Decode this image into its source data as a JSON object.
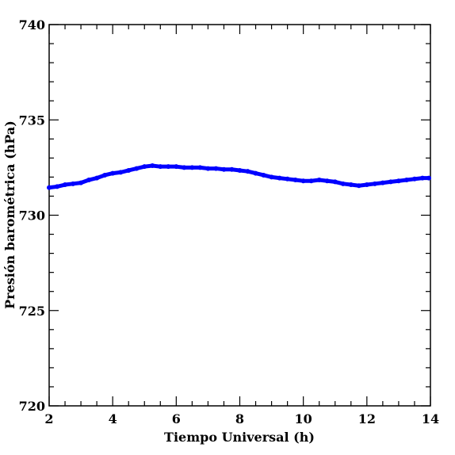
{
  "chart_data": {
    "type": "line",
    "title": "",
    "xlabel": "Tiempo Universal (h)",
    "ylabel": "Presión barométrica (hPa)",
    "xlim": [
      2,
      14
    ],
    "ylim": [
      720,
      740
    ],
    "x_ticks": [
      "2",
      "4",
      "6",
      "8",
      "10",
      "12",
      "14"
    ],
    "y_ticks": [
      "720",
      "725",
      "730",
      "735",
      "740"
    ],
    "grid": false,
    "legend": "none",
    "series": [
      {
        "color": "#0000ff",
        "x": [
          2.0,
          2.25,
          2.5,
          2.75,
          3.0,
          3.25,
          3.5,
          3.75,
          4.0,
          4.25,
          4.5,
          4.75,
          5.0,
          5.25,
          5.5,
          5.75,
          6.0,
          6.25,
          6.5,
          6.75,
          7.0,
          7.25,
          7.5,
          7.75,
          8.0,
          8.25,
          8.5,
          8.75,
          9.0,
          9.25,
          9.5,
          9.75,
          10.0,
          10.25,
          10.5,
          10.75,
          11.0,
          11.25,
          11.5,
          11.75,
          12.0,
          12.25,
          12.5,
          12.75,
          13.0,
          13.25,
          13.5,
          13.75,
          13.95
        ],
        "y": [
          731.45,
          731.5,
          731.6,
          731.65,
          731.7,
          731.85,
          731.95,
          732.1,
          732.2,
          732.25,
          732.35,
          732.45,
          732.55,
          732.6,
          732.55,
          732.55,
          732.55,
          732.5,
          732.5,
          732.5,
          732.45,
          732.45,
          732.4,
          732.4,
          732.35,
          732.3,
          732.2,
          732.1,
          732.0,
          731.95,
          731.9,
          731.85,
          731.8,
          731.8,
          731.85,
          731.8,
          731.75,
          731.65,
          731.6,
          731.55,
          731.6,
          731.65,
          731.7,
          731.75,
          731.8,
          731.85,
          731.9,
          731.95,
          731.95
        ]
      }
    ]
  }
}
